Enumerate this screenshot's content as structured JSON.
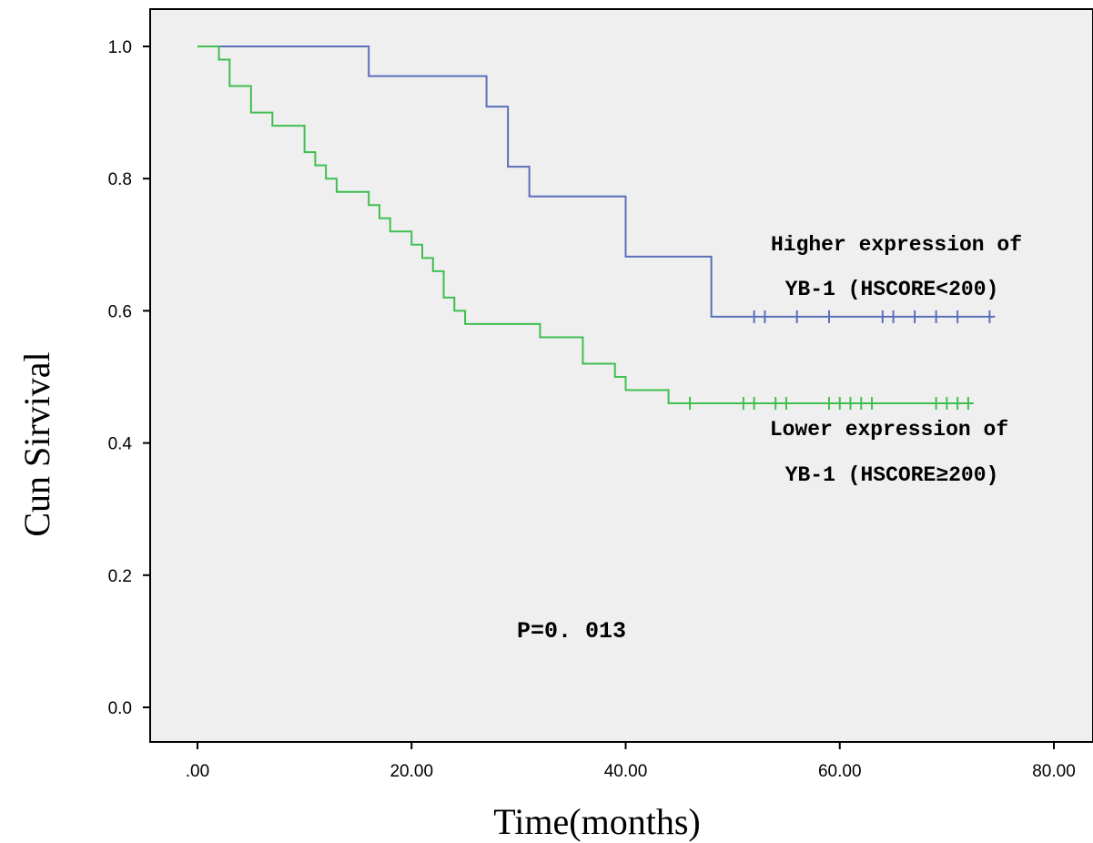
{
  "chart_data": {
    "type": "line",
    "style": "step",
    "xlabel": "Time(months)",
    "ylabel": "Cun Sirvival",
    "xlim": [
      -6,
      81
    ],
    "ylim": [
      -0.05,
      1.06
    ],
    "x_ticks": [
      0,
      20,
      40,
      60,
      80
    ],
    "x_tick_labels": [
      ".00",
      "20.00",
      "40.00",
      "60.00",
      "80.00"
    ],
    "y_ticks": [
      0,
      0.2,
      0.4,
      0.6,
      0.8,
      1.0
    ],
    "y_tick_labels": [
      "0.0",
      "0.2",
      "0.4",
      "0.6",
      "0.8",
      "1.0"
    ],
    "grid": false,
    "background": "#efefef",
    "series": [
      {
        "name": "Higher expression of YB-1 (HSCORE<200)",
        "color": "#5a6fb8",
        "x": [
          0,
          16,
          27,
          29,
          31,
          40,
          48,
          74.5
        ],
        "y": [
          1.0,
          0.955,
          0.909,
          0.818,
          0.773,
          0.682,
          0.591,
          0.591
        ],
        "censored_x": [
          52,
          53,
          56,
          59,
          64,
          65,
          67,
          69,
          71,
          74
        ]
      },
      {
        "name": "Lower expression of YB-1 (HSCORE≥200)",
        "color": "#3fbf50",
        "x": [
          0,
          2,
          3,
          5,
          7,
          10,
          11,
          12,
          13,
          16,
          17,
          18,
          20,
          21,
          22,
          23,
          24,
          25,
          32,
          36,
          39,
          40,
          44,
          72.5
        ],
        "y": [
          1.0,
          0.98,
          0.94,
          0.9,
          0.88,
          0.84,
          0.82,
          0.8,
          0.78,
          0.76,
          0.74,
          0.72,
          0.7,
          0.68,
          0.66,
          0.62,
          0.6,
          0.58,
          0.56,
          0.52,
          0.5,
          0.48,
          0.46,
          0.46
        ],
        "censored_x": [
          46,
          51,
          52,
          54,
          55,
          59,
          60,
          61,
          62,
          63,
          69,
          70,
          71,
          72
        ]
      }
    ],
    "annotations": [
      {
        "text_lines": [
          "Higher expression of",
          "YB-1 (HSCORE<200)"
        ],
        "series": 0
      },
      {
        "text_lines": [
          "Lower expression of",
          "YB-1 (HSCORE≥200)"
        ],
        "series": 1
      },
      {
        "text_lines": [
          "P=0. 013"
        ]
      }
    ]
  }
}
